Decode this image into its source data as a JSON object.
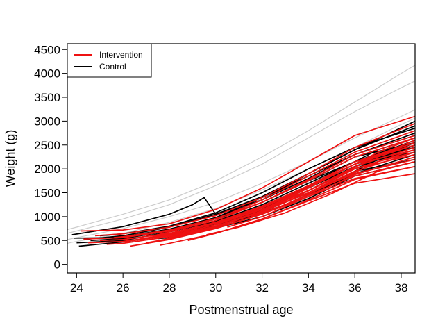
{
  "chart_data": {
    "type": "line",
    "title": "",
    "xlabel": "Postmenstrual age",
    "ylabel": "Weight (g)",
    "xlim": [
      23.6,
      38.6
    ],
    "ylim": [
      -180,
      4620
    ],
    "x_ticks": [
      24,
      26,
      28,
      30,
      32,
      34,
      36,
      38
    ],
    "y_ticks": [
      0,
      500,
      1000,
      1500,
      2000,
      2500,
      3000,
      3500,
      4000,
      4500
    ],
    "x_tick_labels": [
      "24",
      "26",
      "28",
      "30",
      "32",
      "34",
      "36",
      "38"
    ],
    "y_tick_labels": [
      "0",
      "500",
      "1000",
      "1500",
      "2000",
      "2500",
      "3000",
      "3500",
      "4000",
      "4500"
    ],
    "grid": false,
    "legend": {
      "position": "top-left",
      "entries": [
        {
          "label": "Intervention",
          "color": "#ee1111"
        },
        {
          "label": "Control",
          "color": "#000000"
        }
      ]
    },
    "reference_curves": {
      "color": "#cccccc",
      "x": [
        23.6,
        24,
        26,
        28,
        30,
        32,
        34,
        36,
        38,
        38.6
      ],
      "curves": [
        [
          730,
          780,
          1050,
          1350,
          1750,
          2250,
          2800,
          3400,
          4000,
          4170
        ],
        [
          650,
          700,
          950,
          1250,
          1650,
          2100,
          2650,
          3200,
          3700,
          3840
        ],
        [
          520,
          560,
          750,
          1000,
          1300,
          1700,
          2150,
          2650,
          3100,
          3240
        ],
        [
          440,
          480,
          650,
          880,
          1170,
          1560,
          2000,
          2450,
          2930,
          3060
        ]
      ]
    },
    "series_groups": [
      {
        "label": "Control",
        "color": "#000000",
        "series": [
          {
            "x": [
              23.8,
              26,
              28,
              29,
              29.5,
              30,
              32,
              34,
              36,
              38.6
            ],
            "y": [
              620,
              790,
              1050,
              1250,
              1400,
              1050,
              1350,
              1900,
              2400,
              3000
            ]
          },
          {
            "x": [
              23.9,
              26,
              28,
              30,
              32,
              34,
              36,
              38.6
            ],
            "y": [
              550,
              560,
              720,
              980,
              1400,
              1850,
              2300,
              2750
            ]
          },
          {
            "x": [
              24.0,
              26,
              28,
              30,
              32,
              34,
              36,
              38.6
            ],
            "y": [
              450,
              500,
              680,
              900,
              1250,
              1700,
              2150,
              2600
            ]
          },
          {
            "x": [
              24.1,
              26,
              28,
              30,
              32,
              34,
              36,
              38.6
            ],
            "y": [
              380,
              470,
              620,
              850,
              1150,
              1550,
              2000,
              2500
            ]
          },
          {
            "x": [
              24.3,
              26,
              28,
              30,
              32,
              34,
              36,
              38.6
            ],
            "y": [
              520,
              600,
              780,
              1050,
              1420,
              1900,
              2400,
              2900
            ]
          },
          {
            "x": [
              24.6,
              26,
              28,
              30,
              32,
              34,
              36,
              38.6
            ],
            "y": [
              500,
              540,
              700,
              950,
              1300,
              1750,
              2150,
              2450
            ]
          },
          {
            "x": [
              25.0,
              26,
              28,
              30,
              32,
              34,
              36,
              38.6
            ],
            "y": [
              600,
              640,
              800,
              1080,
              1500,
              2000,
              2450,
              2850
            ]
          },
          {
            "x": [
              25.5,
              26,
              28,
              30,
              32,
              34,
              36,
              38.6
            ],
            "y": [
              560,
              580,
              740,
              980,
              1350,
              1800,
              2300,
              2700
            ]
          },
          {
            "x": [
              26.2,
              28,
              30,
              32,
              34,
              36,
              38.6
            ],
            "y": [
              480,
              620,
              870,
              1200,
              1600,
              2050,
              2400
            ]
          },
          {
            "x": [
              26.8,
              28,
              30,
              32,
              34,
              36,
              38.6
            ],
            "y": [
              520,
              640,
              880,
              1180,
              1600,
              2050,
              2550
            ]
          },
          {
            "x": [
              27.5,
              28,
              30,
              32,
              34,
              36,
              38.6
            ],
            "y": [
              540,
              560,
              760,
              1050,
              1450,
              1900,
              2300
            ]
          },
          {
            "x": [
              28.0,
              30,
              32,
              34,
              36,
              38.6
            ],
            "y": [
              620,
              780,
              1100,
              1500,
              1950,
              2200
            ]
          },
          {
            "x": [
              28.5,
              30,
              32,
              34,
              36,
              38.6
            ],
            "y": [
              680,
              800,
              1150,
              1600,
              2100,
              2450
            ]
          },
          {
            "x": [
              29.0,
              30,
              32,
              34,
              36,
              38.6
            ],
            "y": [
              700,
              760,
              1000,
              1380,
              1850,
              2150
            ]
          },
          {
            "x": [
              29.5,
              31,
              33,
              35,
              37,
              38.6
            ],
            "y": [
              820,
              920,
              1250,
              1700,
              2200,
              2350
            ]
          },
          {
            "x": [
              30.5,
              32,
              34,
              36,
              38.6
            ],
            "y": [
              900,
              1150,
              1650,
              2150,
              2500
            ]
          },
          {
            "x": [
              31.0,
              33,
              35,
              37,
              38.6
            ],
            "y": [
              950,
              1350,
              1900,
              2400,
              2650
            ]
          },
          {
            "x": [
              32.0,
              34,
              36,
              38.6
            ],
            "y": [
              1300,
              1750,
              2250,
              2550
            ]
          }
        ]
      },
      {
        "label": "Intervention",
        "color": "#ee1111",
        "series": [
          {
            "x": [
              24.2,
              26,
              28,
              30,
              32,
              34,
              36,
              38.6
            ],
            "y": [
              700,
              720,
              850,
              1150,
              1600,
              2150,
              2700,
              3100
            ]
          },
          {
            "x": [
              24.3,
              26,
              28,
              30,
              32,
              34,
              36,
              38.6
            ],
            "y": [
              530,
              560,
              700,
              950,
              1350,
              1850,
              2350,
              2800
            ]
          },
          {
            "x": [
              24.5,
              26,
              28,
              30,
              32,
              34,
              36,
              38.6
            ],
            "y": [
              450,
              480,
              620,
              860,
              1200,
              1650,
              2150,
              2550
            ]
          },
          {
            "x": [
              24.8,
              26,
              28,
              30,
              32,
              34,
              36,
              38.6
            ],
            "y": [
              600,
              640,
              780,
              1020,
              1400,
              1900,
              2450,
              2950
            ]
          },
          {
            "x": [
              25.0,
              26,
              28,
              30,
              32,
              34,
              36,
              38.6
            ],
            "y": [
              500,
              520,
              650,
              880,
              1220,
              1650,
              2100,
              2400
            ]
          },
          {
            "x": [
              25.3,
              26,
              28,
              30,
              32,
              34,
              36,
              38.6
            ],
            "y": [
              420,
              440,
              580,
              800,
              1120,
              1500,
              1900,
              2200
            ]
          },
          {
            "x": [
              25.6,
              26,
              28,
              30,
              32,
              34,
              36,
              38.6
            ],
            "y": [
              560,
              580,
              720,
              960,
              1300,
              1750,
              2250,
              2650
            ]
          },
          {
            "x": [
              26.0,
              28,
              30,
              32,
              34,
              36,
              38.6
            ],
            "y": [
              470,
              600,
              830,
              1150,
              1550,
              2000,
              2300
            ]
          },
          {
            "x": [
              26.3,
              28,
              30,
              32,
              34,
              36,
              38.6
            ],
            "y": [
              380,
              520,
              750,
              1050,
              1420,
              1800,
              2050
            ]
          },
          {
            "x": [
              26.6,
              28,
              30,
              32,
              34,
              36,
              38.6
            ],
            "y": [
              520,
              640,
              880,
              1220,
              1650,
              2150,
              2500
            ]
          },
          {
            "x": [
              27.0,
              28,
              30,
              32,
              34,
              36,
              38.6
            ],
            "y": [
              450,
              540,
              760,
              1060,
              1450,
              1850,
              2150
            ]
          },
          {
            "x": [
              27.3,
              28,
              30,
              32,
              34,
              36,
              38.6
            ],
            "y": [
              600,
              680,
              920,
              1300,
              1780,
              2300,
              2700
            ]
          },
          {
            "x": [
              27.6,
              28,
              30,
              32,
              34,
              36,
              38.6
            ],
            "y": [
              400,
              440,
              650,
              950,
              1330,
              1700,
              1900
            ]
          },
          {
            "x": [
              28.0,
              30,
              32,
              34,
              36,
              38.6
            ],
            "y": [
              560,
              780,
              1100,
              1500,
              1950,
              2350
            ]
          },
          {
            "x": [
              28.4,
              30,
              32,
              34,
              36,
              38.6
            ],
            "y": [
              640,
              830,
              1180,
              1620,
              2100,
              2500
            ]
          },
          {
            "x": [
              28.8,
              30,
              32,
              34,
              36,
              38.6
            ],
            "y": [
              500,
              650,
              950,
              1350,
              1780,
              2050
            ]
          },
          {
            "x": [
              29.2,
              30,
              32,
              34,
              36,
              38.6
            ],
            "y": [
              700,
              800,
              1120,
              1550,
              2050,
              2450
            ]
          },
          {
            "x": [
              29.6,
              31,
              33,
              35,
              37,
              38.6
            ],
            "y": [
              620,
              780,
              1080,
              1480,
              1950,
              2150
            ]
          },
          {
            "x": [
              30.0,
              32,
              34,
              36,
              38.6
            ],
            "y": [
              850,
              1150,
              1600,
              2100,
              2600
            ]
          },
          {
            "x": [
              30.5,
              32,
              34,
              36,
              38.6
            ],
            "y": [
              780,
              1000,
              1420,
              1880,
              2250
            ]
          },
          {
            "x": [
              31.0,
              33,
              35,
              37,
              38.6
            ],
            "y": [
              950,
              1300,
              1780,
              2280,
              2550
            ]
          },
          {
            "x": [
              31.5,
              33,
              35,
              37,
              38.6
            ],
            "y": [
              1000,
              1250,
              1700,
              2150,
              2350
            ]
          },
          {
            "x": [
              32.0,
              34,
              36,
              38.6
            ],
            "y": [
              1100,
              1500,
              2000,
              2400
            ]
          },
          {
            "x": [
              33.0,
              35,
              37,
              38.6
            ],
            "y": [
              1350,
              1850,
              2350,
              2650
            ]
          }
        ]
      }
    ]
  }
}
